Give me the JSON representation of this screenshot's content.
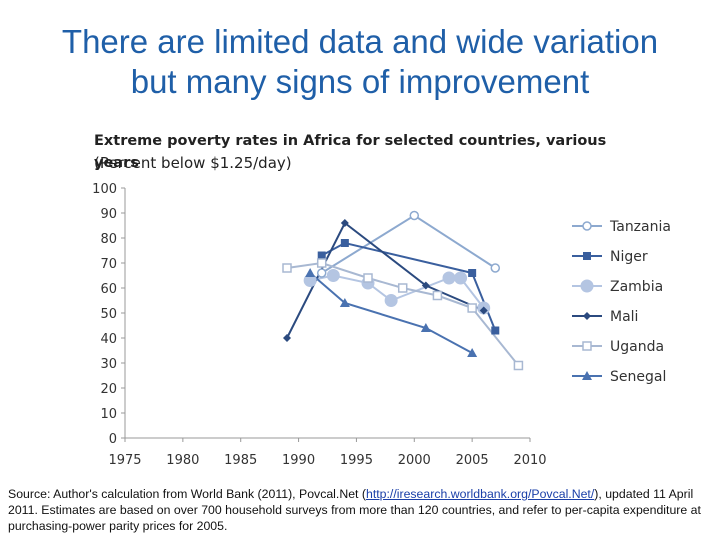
{
  "slide": {
    "title_line1": "There are limited data and wide variation",
    "title_line2": "but many signs of improvement"
  },
  "source": {
    "prefix": "Source:  Author's calculation from World Bank (2011), Povcal.Net  (",
    "link": "http://iresearch.worldbank.org/Povcal.Net/",
    "suffix": "), updated 11 April 2011.  Estimates are based on over 700 household surveys from more than 120 countries, and refer to per-capita expenditure at purchasing-power parity prices for 2005."
  },
  "chart_data": {
    "type": "line",
    "title": "Extreme poverty rates in Africa for selected countries, various years",
    "subtitle": "(Percent below $1.25/day)",
    "xlim": [
      1975,
      2010
    ],
    "ylim": [
      0,
      100
    ],
    "x_ticks": [
      "1975",
      "1980",
      "1985",
      "1990",
      "1995",
      "2000",
      "2005",
      "2010"
    ],
    "y_ticks": [
      "0",
      "10",
      "20",
      "30",
      "40",
      "50",
      "60",
      "70",
      "80",
      "90",
      "100"
    ],
    "legend_position": "right",
    "series": [
      {
        "name": "Tanzania",
        "color": "#8da9cf",
        "marker": "open-circle",
        "x": [
          1992,
          2000,
          2007
        ],
        "y": [
          66,
          89,
          68
        ]
      },
      {
        "name": "Niger",
        "color": "#3a5f9e",
        "marker": "square",
        "x": [
          1992,
          1994,
          2005
        ],
        "y": [
          73,
          78,
          66
        ]
      },
      {
        "name": "Zambia",
        "color": "#b4c5e2",
        "marker": "circle",
        "x": [
          1991,
          1993,
          1996,
          1998,
          2003,
          2004,
          2006
        ],
        "y": [
          63,
          65,
          62,
          55,
          64,
          64,
          52
        ]
      },
      {
        "name": "Mali",
        "color": "#2b4a7f",
        "marker": "diamond",
        "x": [
          1989,
          1994,
          2001,
          2006
        ],
        "y": [
          40,
          86,
          61,
          51
        ]
      },
      {
        "name": "Uganda",
        "color": "#a8b8d2",
        "marker": "open-square",
        "x": [
          1989,
          1992,
          1996,
          1999,
          2002,
          2005,
          2009
        ],
        "y": [
          68,
          70,
          64,
          60,
          57,
          52,
          29
        ]
      },
      {
        "name": "Senegal",
        "color": "#4a72b0",
        "marker": "triangle",
        "x": [
          1991,
          1994,
          2001,
          2005
        ],
        "y": [
          66,
          54,
          44,
          34
        ]
      }
    ],
    "extra_segment": {
      "note": "Niger continues",
      "color": "#3a5f9e",
      "x": [
        2005,
        2007
      ],
      "y": [
        66,
        43
      ]
    }
  }
}
